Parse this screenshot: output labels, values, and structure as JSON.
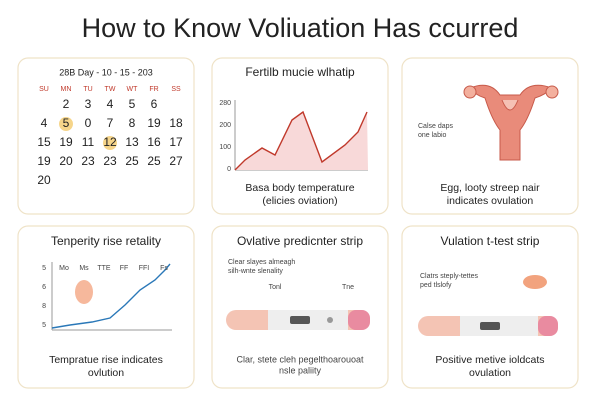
{
  "title": "How to Know Voliuation Has ccurred",
  "cards": [
    {
      "heading": "28B Day - 10 - 15 - 203",
      "weekdays": [
        "SU",
        "MN",
        "TU",
        "TW",
        "WT",
        "FR",
        "SS"
      ],
      "rows": [
        [
          "2",
          "3",
          "4",
          "5",
          "6"
        ],
        [
          "4",
          "5",
          "0",
          "7",
          "8",
          "19",
          "18"
        ],
        [
          "15",
          "19",
          "11",
          "12",
          "13",
          "16",
          "17"
        ],
        [
          "19",
          "20",
          "23",
          "23",
          "25",
          "25",
          "27"
        ],
        [
          "20"
        ]
      ]
    },
    {
      "heading": "Fertilb mucie wlhatip",
      "yaxis": [
        "280",
        "200",
        "100",
        "0"
      ],
      "caption": [
        "Basa body temperature",
        "(elicies oviation)"
      ]
    },
    {
      "label": [
        "Calse daps",
        "one labio"
      ],
      "caption": [
        "Egg, looty streep nair",
        "indicates ovulation"
      ]
    },
    {
      "heading": "Tenperity rise retality",
      "xaxis": [
        "Mo",
        "Ms",
        "TTE",
        "FF",
        "FFI",
        "Fs"
      ],
      "yaxis": [
        "5",
        "6",
        "8",
        "5"
      ],
      "caption": [
        "Tempratue rise indicates",
        "ovlution"
      ]
    },
    {
      "heading": "Ovlative predicnter strip",
      "label": [
        "Clear slayes almeagh",
        "silh-wnte slenality"
      ],
      "marks": [
        "Tonl",
        "Tne"
      ],
      "caption": [
        "Clar, stete cleh pegelthoarouoat",
        "nsle paliity"
      ]
    },
    {
      "heading": "Vulation t-test strip",
      "label": [
        "Clatrs steply-tettes",
        "ped tlslofy"
      ],
      "caption": [
        "Positive metive ioldcats",
        "ovulation"
      ]
    }
  ]
}
